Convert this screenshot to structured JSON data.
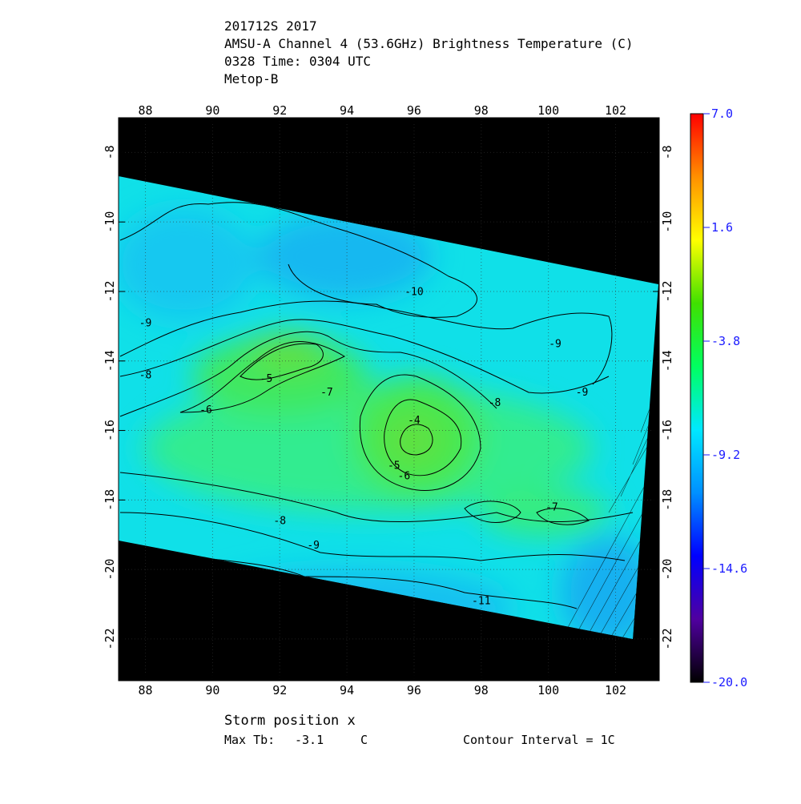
{
  "chart_data": {
    "type": "contour",
    "title_lines": [
      "201712S 2017",
      "AMSU-A Channel 4 (53.6GHz) Brightness Temperature (C)",
      "0328 Time: 0304 UTC",
      "Metop-B"
    ],
    "xlim": [
      87.2,
      103.3
    ],
    "ylim": [
      -23.2,
      -7.0
    ],
    "xticks": [
      88,
      90,
      92,
      94,
      96,
      98,
      100,
      102
    ],
    "yticks": [
      -8,
      -10,
      -12,
      -14,
      -16,
      -18,
      -20,
      -22
    ],
    "grid": true,
    "colorbar": {
      "clim": [
        -20,
        7
      ],
      "ticks": [
        {
          "value": 7.0,
          "label": "7.0"
        },
        1.6,
        -3.8,
        -9.2,
        -14.6,
        {
          "value": -20.0,
          "label": "-20.0"
        }
      ],
      "colormap": [
        "#000000",
        "#5000a0",
        "#0000ff",
        "#0090ff",
        "#00e8ff",
        "#00ff60",
        "#40e000",
        "#ffff00",
        "#ff9000",
        "#ff0000"
      ]
    },
    "contour_labels": [
      {
        "value": -10,
        "x": 96.0,
        "y": -12.1
      },
      {
        "value": -9,
        "x": 88.0,
        "y": -13.0
      },
      {
        "value": -8,
        "x": 88.0,
        "y": -14.5
      },
      {
        "value": -6,
        "x": 89.8,
        "y": -15.5
      },
      {
        "value": -5,
        "x": 91.6,
        "y": -14.6
      },
      {
        "value": -7,
        "x": 93.4,
        "y": -15.0
      },
      {
        "value": -4,
        "x": 96.0,
        "y": -15.8
      },
      {
        "value": -5,
        "x": 95.4,
        "y": -17.1
      },
      {
        "value": -6,
        "x": 95.7,
        "y": -17.4
      },
      {
        "value": -8,
        "x": 98.4,
        "y": -15.3
      },
      {
        "value": -9,
        "x": 100.2,
        "y": -13.6
      },
      {
        "value": -9,
        "x": 101.0,
        "y": -15.0
      },
      {
        "value": -7,
        "x": 100.1,
        "y": -18.3
      },
      {
        "value": -8,
        "x": 92.0,
        "y": -18.7
      },
      {
        "value": -9,
        "x": 93.0,
        "y": -19.4
      },
      {
        "value": -11,
        "x": 98.0,
        "y": -21.0
      }
    ],
    "footer": {
      "storm_position": "Storm position x",
      "max_tb_label": "Max Tb:",
      "max_tb": -3.1,
      "max_tb_unit": "C",
      "contour_interval": "Contour Interval = 1C"
    }
  }
}
